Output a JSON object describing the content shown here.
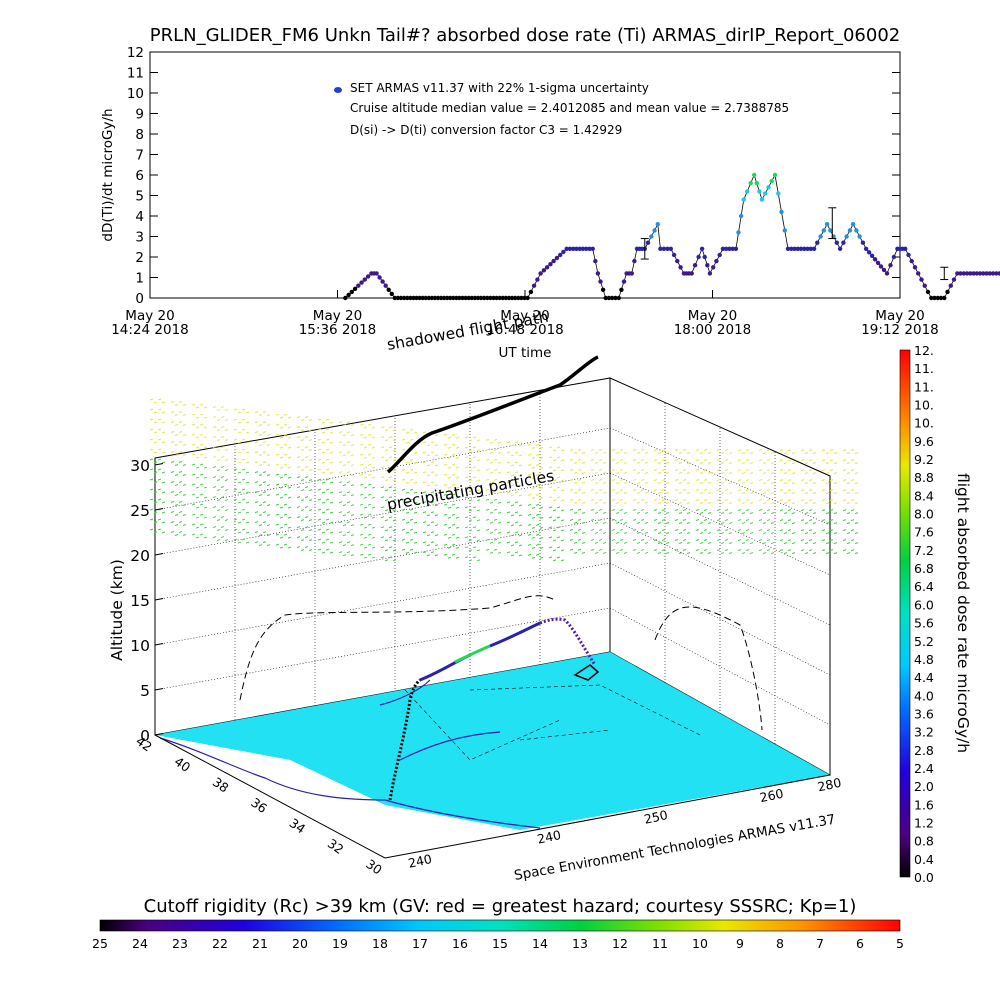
{
  "chart_data": [
    {
      "type": "scatter",
      "title": "PRLN_GLIDER_FM6 Unkn Tail#? absorbed dose rate (Ti) ARMAS_dirIP_Report_06002",
      "ylabel": "dD(Ti)/dt microGy/h",
      "xlabel": "UT time",
      "ylim": [
        0,
        12
      ],
      "yticks": [
        "0",
        "1",
        "2",
        "3",
        "4",
        "5",
        "6",
        "7",
        "8",
        "9",
        "10",
        "11",
        "12"
      ],
      "xticks": [
        {
          "day": "May 20",
          "time": "14:24 2018"
        },
        {
          "day": "May 20",
          "time": "15:36 2018"
        },
        {
          "day": "May 20",
          "time": "16:48 2018"
        },
        {
          "day": "May 20",
          "time": "18:00 2018"
        },
        {
          "day": "May 20",
          "time": "19:12 2018"
        }
      ],
      "legend": {
        "position": "top",
        "series_label": "SET ARMAS v11.37 with 22% 1-sigma uncertainty",
        "note1": "Cruise altitude median value = 2.4012085 and mean value = 2.7388785",
        "note2": "D(si) -> D(ti) conversion factor C3 = 1.42929"
      },
      "series": [
        {
          "x_minutes_after_1424": [
            75,
            85,
            87,
            94,
            100,
            120,
            145,
            150,
            160,
            170,
            172,
            175,
            180,
            183,
            185,
            187,
            190,
            195,
            196,
            200,
            205,
            208,
            212,
            215,
            220,
            225,
            228,
            232,
            235,
            240,
            245,
            250,
            255,
            260,
            265,
            270,
            275,
            283,
            287,
            290,
            295,
            300,
            305,
            310,
            315,
            325,
            335,
            345
          ],
          "values": [
            0,
            1.2,
            1.2,
            0,
            0,
            0,
            0,
            1.2,
            2.4,
            2.4,
            1.2,
            0,
            0,
            1.2,
            1.2,
            2.4,
            2.4,
            3.6,
            2.4,
            2.4,
            1.2,
            1.2,
            2.4,
            1.2,
            2.4,
            2.4,
            4.8,
            6.0,
            4.8,
            6.0,
            2.4,
            2.4,
            2.4,
            3.6,
            2.4,
            3.6,
            2.4,
            1.2,
            2.4,
            2.4,
            1.2,
            0,
            0,
            1.2,
            1.2,
            1.2,
            1.2,
            1.2
          ]
        }
      ],
      "error_bars": [
        {
          "x_minutes_after_1424": 190,
          "low": 1.9,
          "high": 2.9
        },
        {
          "x_minutes_after_1424": 262,
          "low": 2.9,
          "high": 4.4
        },
        {
          "x_minutes_after_1424": 305,
          "low": 0.9,
          "high": 1.5
        }
      ]
    },
    {
      "type": "scatter",
      "zlabel": "Altitude (km)",
      "zticks": [
        "0",
        "5",
        "10",
        "15",
        "20",
        "25",
        "30"
      ],
      "lat_ticks": [
        "30",
        "32",
        "34",
        "36",
        "38",
        "40",
        "42"
      ],
      "lon_ticks": [
        "240",
        "240",
        "250",
        "260",
        "280"
      ],
      "annotations": [
        "shadowed flight path",
        "precipitating particles"
      ],
      "credit": "Space Environment Technologies ARMAS v11.37",
      "colorbar": {
        "title": "flight absorbed dose rate microGy/h",
        "ticks": [
          "0.0",
          "0.4",
          "0.8",
          "1.2",
          "1.6",
          "2.0",
          "2.4",
          "2.8",
          "3.2",
          "3.6",
          "4.0",
          "4.4",
          "4.8",
          "5.2",
          "5.6",
          "6.0",
          "6.4",
          "6.8",
          "7.2",
          "7.6",
          "8.0",
          "8.4",
          "8.8",
          "9.2",
          "9.6",
          "10.",
          "10.",
          "11.",
          "11.",
          "12."
        ]
      }
    },
    {
      "type": "heatmap",
      "title": "Cutoff rigidity (Rc) >39 km (GV: red = greatest hazard; courtesy SSSRC; Kp=1)",
      "ticks": [
        "25",
        "24",
        "23",
        "22",
        "21",
        "20",
        "19",
        "18",
        "17",
        "16",
        "15",
        "14",
        "13",
        "12",
        "11",
        "10",
        "9",
        "8",
        "7",
        "6",
        "5"
      ]
    }
  ],
  "colors": {
    "ground": "#22e1f2",
    "track_low": "#000000",
    "track_mid": "#2a22a8",
    "track_high": "#22c4e8",
    "track_peak": "#22d65a",
    "particles_high": "#e6e640",
    "particles_low": "#44cc44"
  }
}
